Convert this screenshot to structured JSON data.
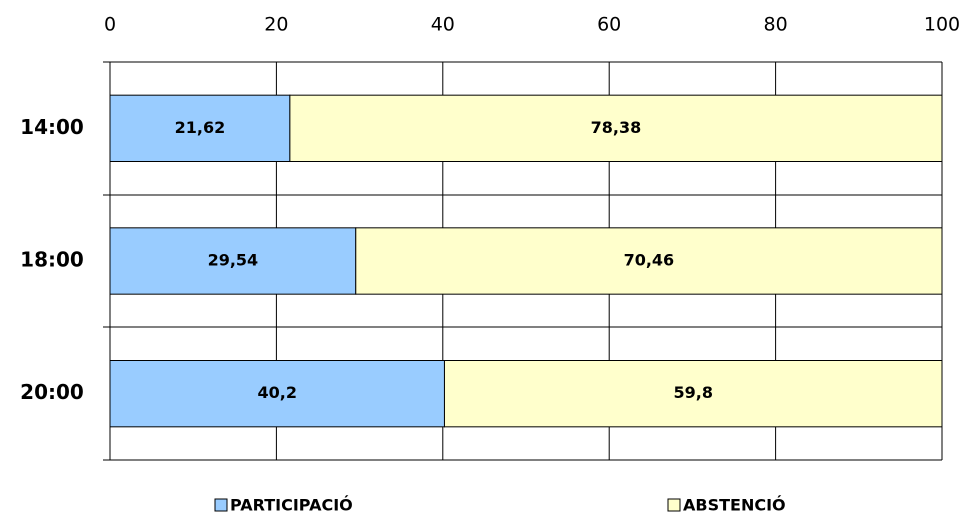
{
  "chart_data": {
    "type": "stacked-bar",
    "orientation": "horizontal",
    "categories": [
      "14:00",
      "18:00",
      "20:00"
    ],
    "series": [
      {
        "name": "PARTICIPACIÓ",
        "color": "#99ccff",
        "values": [
          21.62,
          29.54,
          40.2
        ],
        "value_labels": [
          "21,62",
          "29,54",
          "40,2"
        ]
      },
      {
        "name": "ABSTENCIÓ",
        "color": "#ffffcc",
        "values": [
          78.38,
          70.46,
          59.8
        ],
        "value_labels": [
          "78,38",
          "70,46",
          "59,8"
        ]
      }
    ],
    "xlim": [
      0,
      100
    ],
    "xticks": [
      0,
      20,
      40,
      60,
      80,
      100
    ],
    "grid": true,
    "legend": "bottom"
  }
}
